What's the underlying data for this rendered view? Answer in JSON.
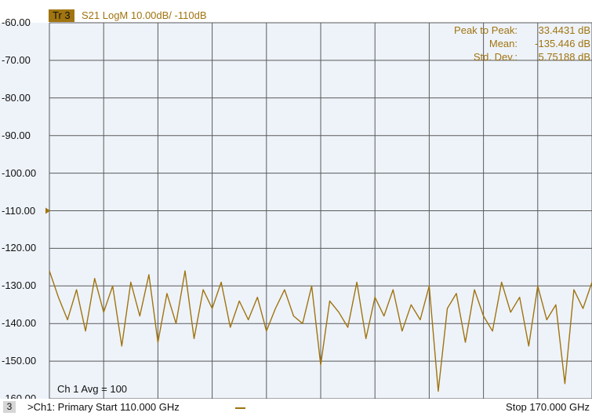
{
  "trace_header": {
    "badge": "Tr 3",
    "title": "S21 LogM 10.00dB/  -110dB"
  },
  "statistics": [
    {
      "label": "Peak to Peak:",
      "value": "33.4431 dB"
    },
    {
      "label": "Mean:",
      "value": "-135.446 dB"
    },
    {
      "label": "Std. Dev.:",
      "value": "5.75188 dB"
    }
  ],
  "averaging_label": "Ch 1 Avg =   100",
  "channel_bar": {
    "channel_number": "3",
    "channel_text": ">Ch1: Primary   Start  110.000 GHz",
    "stop_text": "Stop  170.000 GHz"
  },
  "colors": {
    "trace": "#a0740f",
    "grid": "#5a5a5a",
    "plot_background": "#eef3fa"
  },
  "chart_data": {
    "type": "line",
    "title": "S21 LogM 10.00dB/  -110dB",
    "xlabel": "",
    "ylabel": "",
    "xlim": [
      110,
      170
    ],
    "ylim": [
      -160,
      -60
    ],
    "x_unit": "GHz",
    "y_unit": "dB",
    "reference_level": -110,
    "grid": true,
    "y_ticks": [
      "-60.00",
      "-70.00",
      "-80.00",
      "-90.00",
      "-100.00",
      "-110.00",
      "-120.00",
      "-130.00",
      "-140.00",
      "-150.00",
      "-160.00"
    ],
    "series": [
      {
        "color": "#a0740f",
        "x": [
          110,
          111,
          112,
          113,
          114,
          115,
          116,
          117,
          118,
          119,
          120,
          121,
          122,
          123,
          124,
          125,
          126,
          127,
          128,
          129,
          130,
          131,
          132,
          133,
          134,
          135,
          136,
          137,
          138,
          139,
          140,
          141,
          142,
          143,
          144,
          145,
          146,
          147,
          148,
          149,
          150,
          151,
          152,
          153,
          154,
          155,
          156,
          157,
          158,
          159,
          160,
          161,
          162,
          163,
          164,
          165,
          166,
          167,
          168,
          169,
          170
        ],
        "y": [
          -126,
          -133,
          -139,
          -131,
          -142,
          -128,
          -137,
          -130,
          -146,
          -129,
          -138,
          -127,
          -145,
          -132,
          -140,
          -126,
          -144,
          -131,
          -136,
          -129,
          -141,
          -134,
          -139,
          -133,
          -142,
          -136,
          -131,
          -138,
          -140,
          -130,
          -151,
          -134,
          -137,
          -141,
          -129,
          -144,
          -133,
          -138,
          -131,
          -142,
          -135,
          -139,
          -130,
          -158,
          -136,
          -132,
          -145,
          -131,
          -138,
          -142,
          -129,
          -137,
          -133,
          -146,
          -130,
          -139,
          -135,
          -156,
          -131,
          -136,
          -129
        ]
      }
    ]
  }
}
